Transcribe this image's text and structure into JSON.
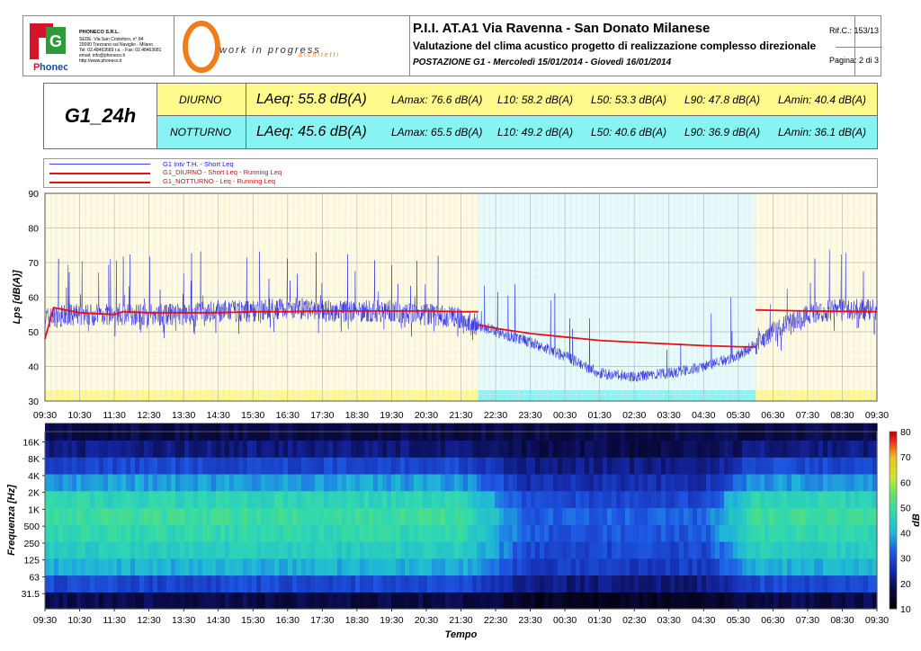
{
  "header": {
    "logo_letters": "P",
    "logo_text": "honeco",
    "company": {
      "name": "PHONECO S.R.L.",
      "lines": [
        "SEDE: Via San Cristoforo, n° 84",
        "20090 Trezzano sul Naviglio - Milano",
        "Tel: 02.48463689 r.a. - Fax: 02.48463681",
        "email: info@phoneco.it",
        "http://www.phoneco.it"
      ]
    },
    "wip_text": "work in progress",
    "wip_sub": "a r c h i t e t t i",
    "title": "P.I.I. AT.A1 Via Ravenna - San Donato Milanese",
    "subtitle": "Valutazione del clima acustico progetto di realizzazione complesso direzionale",
    "station": "POSTAZIONE G1 - Mercoledì 15/01/2014 - Giovedì 16/01/2014",
    "ref": "Rif.C.: 153/13",
    "page": "Pagina: 2 di 3"
  },
  "summary": {
    "id": "G1_24h",
    "rows": [
      {
        "period": "DIURNO",
        "laeq": "LAeq: 55.8 dB(A)",
        "lamax": "LAmax: 76.6 dB(A)",
        "l10": "L10: 58.2 dB(A)",
        "l50": "L50: 53.3 dB(A)",
        "l90": "L90: 47.8 dB(A)",
        "lamin": "LAmin: 40.4 dB(A)",
        "color": "#fdf98a"
      },
      {
        "period": "NOTTURNO",
        "laeq": "LAeq: 45.6 dB(A)",
        "lamax": "LAmax: 65.5 dB(A)",
        "l10": "L10: 49.2 dB(A)",
        "l50": "L50: 40.6 dB(A)",
        "l90": "L90: 36.9 dB(A)",
        "lamin": "LAmin: 36.1 dB(A)",
        "color": "#88f3f3"
      }
    ]
  },
  "legend": [
    {
      "label": "G1 Intv T.H. - Short Leq",
      "color": "#4040ff"
    },
    {
      "label": "G1_DIURNO - Short Leq - Running Leq",
      "color": "#e81010"
    },
    {
      "label": "G1_NOTTURNO - Leq - Running Leq",
      "color": "#e81010"
    }
  ],
  "chart_data": [
    {
      "type": "line",
      "ylabel": "Lps [dB(A)]",
      "xlabel": "",
      "ylim": [
        30,
        90
      ],
      "yticks": [
        "30",
        "40",
        "50",
        "60",
        "70",
        "80",
        "90"
      ],
      "x_ticks": [
        "09:30",
        "10:30",
        "11:30",
        "12:30",
        "13:30",
        "14:30",
        "15:30",
        "16:30",
        "17:30",
        "18:30",
        "19:30",
        "20:30",
        "21:30",
        "22:30",
        "23:30",
        "00:30",
        "01:30",
        "02:30",
        "03:30",
        "04:30",
        "05:30",
        "06:30",
        "07:30",
        "08:30",
        "09:30"
      ],
      "grid": true,
      "periods": [
        {
          "name": "DIURNO",
          "from": "09:30",
          "to": "22:00",
          "color": "#fffbe0"
        },
        {
          "name": "NOTTURNO",
          "from": "22:00",
          "to": "06:00",
          "color": "#e6fbfb"
        },
        {
          "name": "DIURNO",
          "from": "06:00",
          "to": "09:30",
          "color": "#fffbe0"
        }
      ],
      "series": [
        {
          "name": "G1 Intv T.H. - Short Leq",
          "color": "#1010e0",
          "x": [
            "09:30",
            "10:30",
            "11:30",
            "12:30",
            "13:30",
            "14:30",
            "15:30",
            "16:30",
            "17:30",
            "18:30",
            "19:30",
            "20:30",
            "21:30",
            "22:30",
            "23:30",
            "00:30",
            "01:30",
            "02:30",
            "03:30",
            "04:30",
            "05:30",
            "06:30",
            "07:30",
            "08:30",
            "09:30"
          ],
          "y": [
            54,
            55,
            55,
            55,
            55,
            56,
            56,
            57,
            56,
            56,
            56,
            55,
            54,
            50,
            47,
            43,
            38,
            37,
            38,
            40,
            43,
            50,
            55,
            57,
            56
          ]
        },
        {
          "name": "G1_DIURNO - Short Leq - Running Leq",
          "color": "#e81010",
          "x": [
            "09:30",
            "09:45",
            "10:30",
            "11:30",
            "11:45",
            "12:30",
            "13:30",
            "14:30",
            "15:30",
            "16:30",
            "17:30",
            "18:30",
            "19:30",
            "20:30",
            "21:30",
            "22:00",
            "06:00",
            "06:30",
            "07:30",
            "08:30",
            "09:30"
          ],
          "y": [
            48,
            57,
            55.5,
            55,
            55.8,
            55.5,
            55.5,
            55.5,
            55.8,
            55.8,
            56,
            56,
            56,
            56,
            55.8,
            55.8,
            56.3,
            56.2,
            56,
            55.9,
            55.8
          ]
        },
        {
          "name": "G1_NOTTURNO - Leq - Running Leq",
          "color": "#e81010",
          "x": [
            "22:00",
            "22:30",
            "23:30",
            "00:30",
            "01:30",
            "02:30",
            "03:30",
            "04:30",
            "05:30",
            "06:00"
          ],
          "y": [
            52,
            51,
            49.5,
            48.5,
            47.5,
            47,
            46.5,
            46,
            45.7,
            45.6
          ]
        }
      ]
    },
    {
      "type": "heatmap",
      "ylabel": "Frequenza [Hz]",
      "xlabel": "Tempo",
      "yticks": [
        "31.5",
        "63",
        "125",
        "250",
        "500",
        "1K",
        "2K",
        "4K",
        "8K",
        "16K"
      ],
      "x_ticks": [
        "09:30",
        "10:30",
        "11:30",
        "12:30",
        "13:30",
        "14:30",
        "15:30",
        "16:30",
        "17:30",
        "18:30",
        "19:30",
        "20:30",
        "21:30",
        "22:30",
        "23:30",
        "00:30",
        "01:30",
        "02:30",
        "03:30",
        "04:30",
        "05:30",
        "06:30",
        "07:30",
        "08:30",
        "09:30"
      ],
      "colorbar": {
        "label": "dB",
        "min": 10,
        "max": 80,
        "ticks": [
          "10",
          "20",
          "30",
          "40",
          "50",
          "60",
          "70",
          "80"
        ]
      },
      "bands": [
        "31.5",
        "63",
        "125",
        "250",
        "500",
        "1K",
        "2K",
        "4K",
        "8K",
        "16K"
      ],
      "level_day_profile": [
        18,
        30,
        40,
        45,
        48,
        50,
        47,
        38,
        30,
        22
      ],
      "level_night_profile": [
        14,
        22,
        28,
        30,
        32,
        33,
        30,
        26,
        22,
        18
      ]
    }
  ]
}
